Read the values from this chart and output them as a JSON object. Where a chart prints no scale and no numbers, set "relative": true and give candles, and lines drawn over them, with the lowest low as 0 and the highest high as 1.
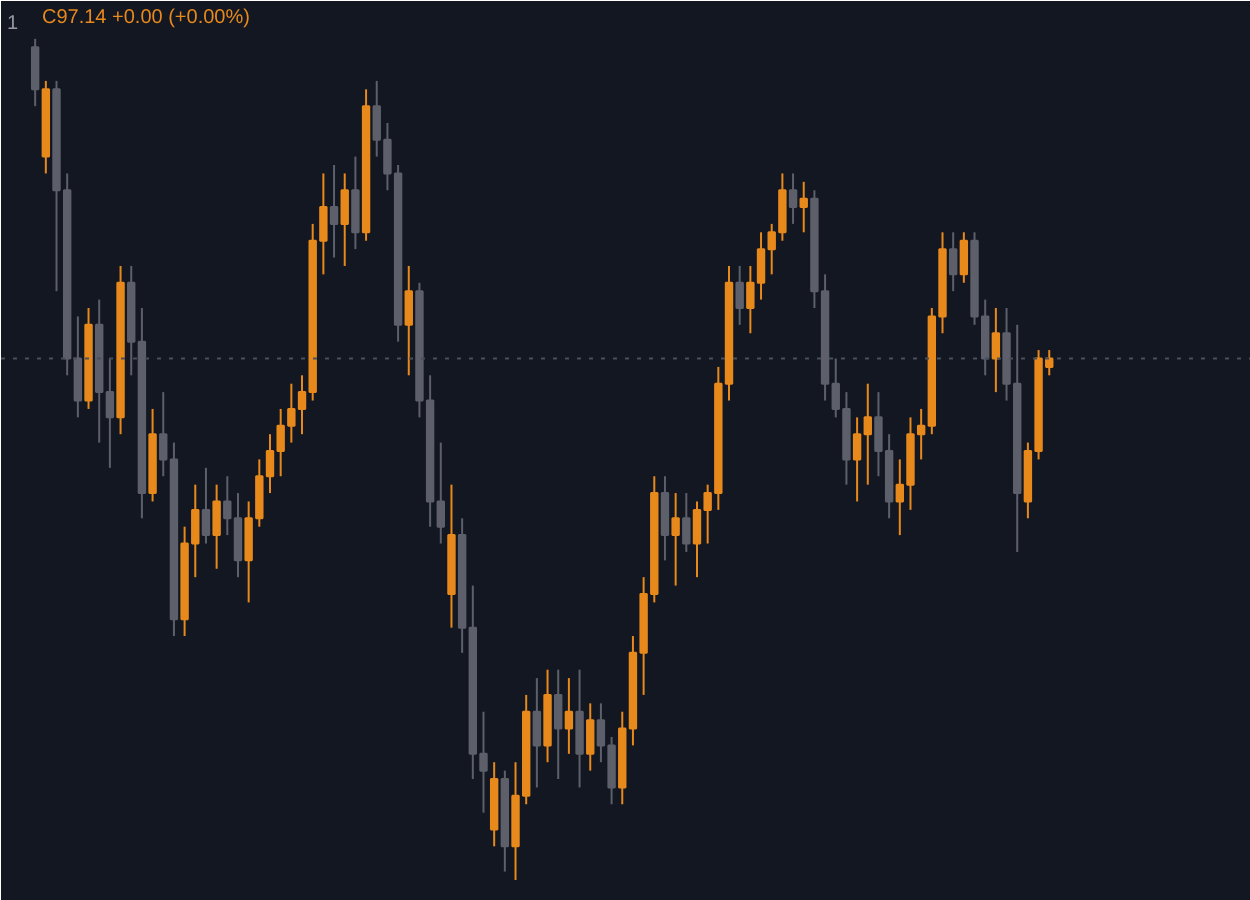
{
  "chart_data": {
    "type": "candlestick",
    "relative": true,
    "tick_labels": false,
    "grid": false,
    "annotations": [
      "1",
      "C97.14 +0.00 (+0.00%)"
    ],
    "categories": [
      null,
      null,
      null,
      null,
      null,
      null,
      null,
      null,
      null,
      null,
      null,
      null,
      null,
      null,
      null,
      null,
      null,
      null,
      null,
      null,
      null,
      null,
      null,
      null,
      null,
      null,
      null,
      null,
      null,
      null,
      null,
      null,
      null,
      null,
      null,
      null,
      null,
      null,
      null,
      null,
      null,
      null,
      null,
      null,
      null,
      null,
      null,
      null,
      null,
      null,
      null,
      null,
      null,
      null,
      null,
      null,
      null,
      null,
      null,
      null,
      null,
      null,
      null,
      null,
      null,
      null,
      null,
      null,
      null,
      null,
      null,
      null,
      null,
      null,
      null,
      null,
      null,
      null,
      null,
      null,
      null,
      null,
      null,
      null,
      null,
      null,
      null,
      null,
      null,
      null,
      null,
      null,
      null,
      null,
      null,
      null
    ],
    "ohlc": [
      [
        0.99,
        1.0,
        0.92,
        0.94
      ],
      [
        0.86,
        0.95,
        0.84,
        0.94
      ],
      [
        0.94,
        0.95,
        0.7,
        0.82
      ],
      [
        0.82,
        0.84,
        0.6,
        0.62
      ],
      [
        0.62,
        0.67,
        0.55,
        0.57
      ],
      [
        0.57,
        0.68,
        0.56,
        0.66
      ],
      [
        0.66,
        0.69,
        0.52,
        0.58
      ],
      [
        0.58,
        0.62,
        0.49,
        0.55
      ],
      [
        0.55,
        0.73,
        0.53,
        0.71
      ],
      [
        0.71,
        0.73,
        0.6,
        0.64
      ],
      [
        0.64,
        0.68,
        0.43,
        0.46
      ],
      [
        0.46,
        0.56,
        0.45,
        0.53
      ],
      [
        0.53,
        0.58,
        0.48,
        0.5
      ],
      [
        0.5,
        0.52,
        0.29,
        0.31
      ],
      [
        0.31,
        0.42,
        0.29,
        0.4
      ],
      [
        0.4,
        0.47,
        0.36,
        0.44
      ],
      [
        0.44,
        0.49,
        0.4,
        0.41
      ],
      [
        0.41,
        0.47,
        0.37,
        0.45
      ],
      [
        0.45,
        0.48,
        0.41,
        0.43
      ],
      [
        0.43,
        0.46,
        0.36,
        0.38
      ],
      [
        0.38,
        0.45,
        0.33,
        0.43
      ],
      [
        0.43,
        0.5,
        0.42,
        0.48
      ],
      [
        0.48,
        0.53,
        0.46,
        0.51
      ],
      [
        0.51,
        0.56,
        0.48,
        0.54
      ],
      [
        0.54,
        0.59,
        0.52,
        0.56
      ],
      [
        0.56,
        0.6,
        0.53,
        0.58
      ],
      [
        0.58,
        0.78,
        0.57,
        0.76
      ],
      [
        0.76,
        0.84,
        0.72,
        0.8
      ],
      [
        0.8,
        0.85,
        0.74,
        0.78
      ],
      [
        0.78,
        0.84,
        0.73,
        0.82
      ],
      [
        0.82,
        0.86,
        0.75,
        0.77
      ],
      [
        0.77,
        0.94,
        0.76,
        0.92
      ],
      [
        0.92,
        0.95,
        0.86,
        0.88
      ],
      [
        0.88,
        0.9,
        0.82,
        0.84
      ],
      [
        0.84,
        0.85,
        0.64,
        0.66
      ],
      [
        0.66,
        0.73,
        0.6,
        0.7
      ],
      [
        0.7,
        0.71,
        0.55,
        0.57
      ],
      [
        0.57,
        0.6,
        0.42,
        0.45
      ],
      [
        0.45,
        0.52,
        0.4,
        0.42
      ],
      [
        0.34,
        0.47,
        0.3,
        0.41
      ],
      [
        0.41,
        0.43,
        0.27,
        0.3
      ],
      [
        0.3,
        0.35,
        0.12,
        0.15
      ],
      [
        0.15,
        0.2,
        0.08,
        0.13
      ],
      [
        0.06,
        0.14,
        0.04,
        0.12
      ],
      [
        0.12,
        0.13,
        0.01,
        0.04
      ],
      [
        0.04,
        0.14,
        0.0,
        0.1
      ],
      [
        0.1,
        0.22,
        0.09,
        0.2
      ],
      [
        0.2,
        0.24,
        0.11,
        0.16
      ],
      [
        0.16,
        0.25,
        0.14,
        0.22
      ],
      [
        0.22,
        0.25,
        0.12,
        0.18
      ],
      [
        0.18,
        0.24,
        0.15,
        0.2
      ],
      [
        0.2,
        0.25,
        0.11,
        0.15
      ],
      [
        0.15,
        0.21,
        0.13,
        0.19
      ],
      [
        0.19,
        0.21,
        0.14,
        0.16
      ],
      [
        0.16,
        0.17,
        0.09,
        0.11
      ],
      [
        0.11,
        0.2,
        0.09,
        0.18
      ],
      [
        0.18,
        0.29,
        0.16,
        0.27
      ],
      [
        0.27,
        0.36,
        0.22,
        0.34
      ],
      [
        0.34,
        0.48,
        0.33,
        0.46
      ],
      [
        0.46,
        0.48,
        0.38,
        0.41
      ],
      [
        0.41,
        0.46,
        0.35,
        0.43
      ],
      [
        0.43,
        0.46,
        0.39,
        0.4
      ],
      [
        0.4,
        0.45,
        0.36,
        0.44
      ],
      [
        0.44,
        0.47,
        0.4,
        0.46
      ],
      [
        0.46,
        0.61,
        0.44,
        0.59
      ],
      [
        0.59,
        0.73,
        0.57,
        0.71
      ],
      [
        0.71,
        0.73,
        0.66,
        0.68
      ],
      [
        0.68,
        0.73,
        0.65,
        0.71
      ],
      [
        0.71,
        0.77,
        0.69,
        0.75
      ],
      [
        0.75,
        0.78,
        0.72,
        0.77
      ],
      [
        0.77,
        0.84,
        0.76,
        0.82
      ],
      [
        0.82,
        0.84,
        0.78,
        0.8
      ],
      [
        0.8,
        0.83,
        0.77,
        0.81
      ],
      [
        0.81,
        0.82,
        0.68,
        0.7
      ],
      [
        0.7,
        0.72,
        0.57,
        0.59
      ],
      [
        0.59,
        0.62,
        0.55,
        0.56
      ],
      [
        0.56,
        0.58,
        0.47,
        0.5
      ],
      [
        0.5,
        0.55,
        0.45,
        0.53
      ],
      [
        0.53,
        0.59,
        0.47,
        0.55
      ],
      [
        0.55,
        0.58,
        0.48,
        0.51
      ],
      [
        0.51,
        0.53,
        0.43,
        0.45
      ],
      [
        0.45,
        0.5,
        0.41,
        0.47
      ],
      [
        0.47,
        0.55,
        0.44,
        0.53
      ],
      [
        0.53,
        0.56,
        0.5,
        0.54
      ],
      [
        0.54,
        0.68,
        0.53,
        0.67
      ],
      [
        0.67,
        0.77,
        0.65,
        0.75
      ],
      [
        0.75,
        0.77,
        0.7,
        0.72
      ],
      [
        0.72,
        0.77,
        0.71,
        0.76
      ],
      [
        0.76,
        0.77,
        0.66,
        0.67
      ],
      [
        0.67,
        0.69,
        0.6,
        0.62
      ],
      [
        0.62,
        0.68,
        0.58,
        0.65
      ],
      [
        0.65,
        0.68,
        0.57,
        0.59
      ],
      [
        0.59,
        0.66,
        0.39,
        0.46
      ],
      [
        0.45,
        0.52,
        0.43,
        0.51
      ],
      [
        0.51,
        0.63,
        0.5,
        0.62
      ],
      [
        0.61,
        0.63,
        0.6,
        0.62
      ]
    ],
    "colors": [
      "#5d606b",
      "#e8891c",
      "#5d606b",
      "#5d606b",
      "#5d606b",
      "#e8891c",
      "#5d606b",
      "#5d606b",
      "#e8891c",
      "#5d606b",
      "#5d606b",
      "#e8891c",
      "#5d606b",
      "#5d606b",
      "#e8891c",
      "#e8891c",
      "#5d606b",
      "#e8891c",
      "#5d606b",
      "#5d606b",
      "#e8891c",
      "#e8891c",
      "#e8891c",
      "#e8891c",
      "#e8891c",
      "#e8891c",
      "#e8891c",
      "#e8891c",
      "#5d606b",
      "#e8891c",
      "#5d606b",
      "#e8891c",
      "#5d606b",
      "#5d606b",
      "#5d606b",
      "#e8891c",
      "#5d606b",
      "#5d606b",
      "#5d606b",
      "#e8891c",
      "#5d606b",
      "#5d606b",
      "#5d606b",
      "#e8891c",
      "#5d606b",
      "#e8891c",
      "#e8891c",
      "#5d606b",
      "#e8891c",
      "#5d606b",
      "#e8891c",
      "#5d606b",
      "#e8891c",
      "#5d606b",
      "#5d606b",
      "#e8891c",
      "#e8891c",
      "#e8891c",
      "#e8891c",
      "#5d606b",
      "#e8891c",
      "#5d606b",
      "#e8891c",
      "#e8891c",
      "#e8891c",
      "#e8891c",
      "#5d606b",
      "#e8891c",
      "#e8891c",
      "#e8891c",
      "#e8891c",
      "#5d606b",
      "#e8891c",
      "#5d606b",
      "#5d606b",
      "#5d606b",
      "#5d606b",
      "#e8891c",
      "#e8891c",
      "#5d606b",
      "#5d606b",
      "#e8891c",
      "#e8891c",
      "#e8891c",
      "#e8891c",
      "#e8891c",
      "#5d606b",
      "#e8891c",
      "#5d606b",
      "#5d606b",
      "#e8891c",
      "#5d606b",
      "#5d606b",
      "#e8891c",
      "#e8891c",
      "#e8891c"
    ],
    "ref_lines": [
      {
        "axis": "y",
        "value": 0.62,
        "line_style": "dotted",
        "color": "#4a4f5c"
      }
    ]
  }
}
